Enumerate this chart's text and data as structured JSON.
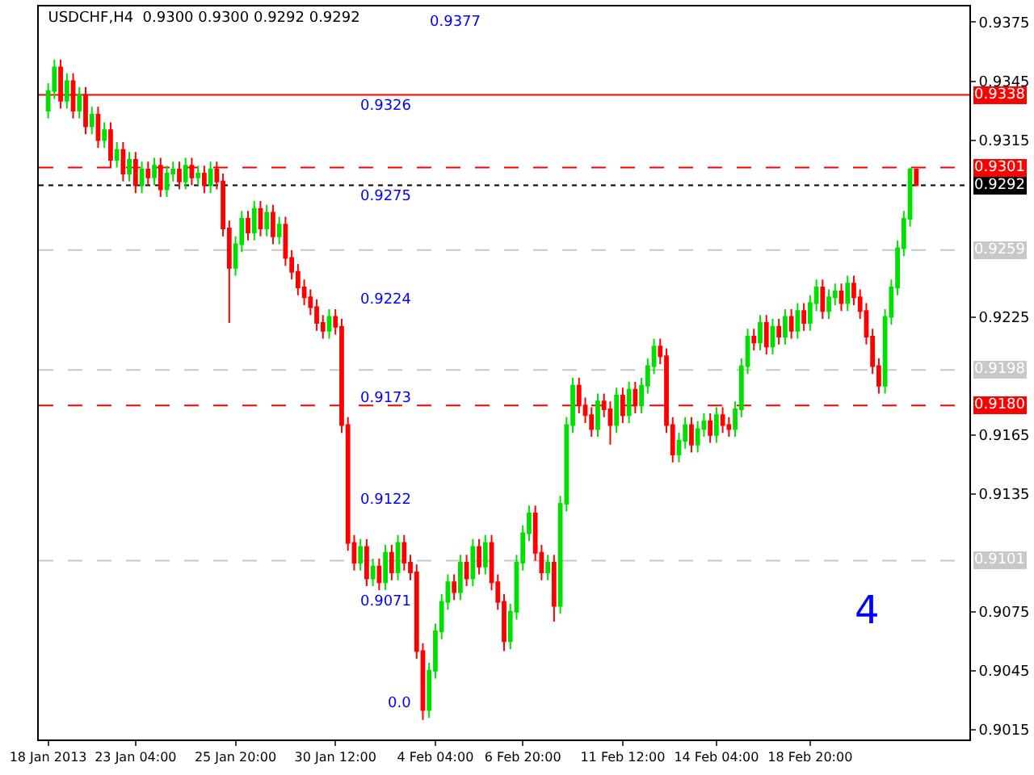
{
  "chart_data": {
    "type": "candlestick",
    "title": "USDCHF,H4  0.9300 0.9300 0.9292 0.9292",
    "categories": [
      "18 Jan 2013",
      null,
      null,
      null,
      null,
      null,
      null,
      null,
      null,
      null,
      null,
      null,
      null,
      null,
      "23 Jan 04:00",
      null,
      null,
      null,
      null,
      null,
      null,
      null,
      null,
      null,
      null,
      null,
      null,
      null,
      null,
      null,
      "25 Jan 20:00",
      null,
      null,
      null,
      null,
      null,
      null,
      null,
      null,
      null,
      null,
      null,
      null,
      null,
      null,
      null,
      "30 Jan 12:00",
      null,
      null,
      null,
      null,
      null,
      null,
      null,
      null,
      null,
      null,
      null,
      null,
      null,
      null,
      null,
      "4 Feb 04:00",
      null,
      null,
      null,
      null,
      null,
      null,
      null,
      null,
      null,
      null,
      null,
      null,
      null,
      "6 Feb 20:00",
      null,
      null,
      null,
      null,
      null,
      null,
      null,
      null,
      null,
      null,
      null,
      null,
      null,
      null,
      null,
      "11 Feb 12:00",
      null,
      null,
      null,
      null,
      null,
      null,
      null,
      null,
      null,
      null,
      null,
      null,
      null,
      null,
      "14 Feb 04:00",
      null,
      null,
      null,
      null,
      null,
      null,
      null,
      null,
      null,
      null,
      null,
      null,
      null,
      null,
      "18 Feb 20:00",
      null,
      null,
      null,
      null,
      null,
      null,
      null,
      null,
      null,
      null,
      null,
      null,
      null,
      null,
      null,
      null,
      null
    ],
    "ohlc": [
      [
        0.933,
        0.9344,
        0.9326,
        0.934
      ],
      [
        0.934,
        0.9356,
        0.9336,
        0.9352
      ],
      [
        0.9352,
        0.9356,
        0.9331,
        0.9335
      ],
      [
        0.9335,
        0.9349,
        0.9331,
        0.9345
      ],
      [
        0.9345,
        0.9349,
        0.9326,
        0.933
      ],
      [
        0.933,
        0.9342,
        0.9326,
        0.9338
      ],
      [
        0.9338,
        0.9342,
        0.9318,
        0.9322
      ],
      [
        0.9322,
        0.9332,
        0.9318,
        0.9328
      ],
      [
        0.9328,
        0.9332,
        0.9311,
        0.9315
      ],
      [
        0.9315,
        0.9324,
        0.9311,
        0.932
      ],
      [
        0.932,
        0.9324,
        0.9301,
        0.9305
      ],
      [
        0.9305,
        0.9314,
        0.9301,
        0.931
      ],
      [
        0.931,
        0.9314,
        0.9294,
        0.9298
      ],
      [
        0.9298,
        0.9309,
        0.9294,
        0.9305
      ],
      [
        0.9305,
        0.9309,
        0.9288,
        0.9292
      ],
      [
        0.9292,
        0.9304,
        0.9288,
        0.93
      ],
      [
        0.93,
        0.9304,
        0.9292,
        0.9296
      ],
      [
        0.9296,
        0.9306,
        0.9292,
        0.9302
      ],
      [
        0.9302,
        0.9306,
        0.9286,
        0.929
      ],
      [
        0.929,
        0.9302,
        0.9286,
        0.9298
      ],
      [
        0.9298,
        0.9304,
        0.9294,
        0.93
      ],
      [
        0.93,
        0.9304,
        0.929,
        0.9294
      ],
      [
        0.9294,
        0.9306,
        0.929,
        0.9302
      ],
      [
        0.9302,
        0.9306,
        0.9292,
        0.9296
      ],
      [
        0.9296,
        0.9302,
        0.9292,
        0.9298
      ],
      [
        0.9298,
        0.9302,
        0.9288,
        0.9292
      ],
      [
        0.9292,
        0.9304,
        0.9288,
        0.93
      ],
      [
        0.93,
        0.9304,
        0.929,
        0.9294
      ],
      [
        0.9294,
        0.9298,
        0.9266,
        0.927
      ],
      [
        0.927,
        0.9274,
        0.9222,
        0.925
      ],
      [
        0.925,
        0.9266,
        0.9246,
        0.9262
      ],
      [
        0.9262,
        0.9279,
        0.9258,
        0.9275
      ],
      [
        0.9275,
        0.9279,
        0.9264,
        0.9268
      ],
      [
        0.9268,
        0.9284,
        0.9264,
        0.928
      ],
      [
        0.928,
        0.9284,
        0.9266,
        0.927
      ],
      [
        0.927,
        0.9282,
        0.9266,
        0.9278
      ],
      [
        0.9278,
        0.9282,
        0.9262,
        0.9266
      ],
      [
        0.9266,
        0.9276,
        0.9262,
        0.9272
      ],
      [
        0.9272,
        0.9276,
        0.9251,
        0.9255
      ],
      [
        0.9255,
        0.9259,
        0.9244,
        0.9248
      ],
      [
        0.9248,
        0.9252,
        0.9236,
        0.924
      ],
      [
        0.924,
        0.9244,
        0.9231,
        0.9235
      ],
      [
        0.9235,
        0.9239,
        0.9226,
        0.923
      ],
      [
        0.923,
        0.9234,
        0.9218,
        0.9222
      ],
      [
        0.9222,
        0.9226,
        0.9214,
        0.9218
      ],
      [
        0.9218,
        0.9229,
        0.9214,
        0.9225
      ],
      [
        0.9225,
        0.9229,
        0.9216,
        0.922
      ],
      [
        0.922,
        0.9224,
        0.9166,
        0.917
      ],
      [
        0.917,
        0.9174,
        0.9106,
        0.911
      ],
      [
        0.911,
        0.9114,
        0.9096,
        0.91
      ],
      [
        0.91,
        0.9112,
        0.9096,
        0.9108
      ],
      [
        0.9108,
        0.9112,
        0.9088,
        0.9092
      ],
      [
        0.9092,
        0.9102,
        0.9088,
        0.9098
      ],
      [
        0.9098,
        0.9102,
        0.9086,
        0.909
      ],
      [
        0.909,
        0.9109,
        0.9086,
        0.9105
      ],
      [
        0.9105,
        0.9109,
        0.9091,
        0.9095
      ],
      [
        0.9095,
        0.9114,
        0.9091,
        0.911
      ],
      [
        0.911,
        0.9114,
        0.9096,
        0.91
      ],
      [
        0.91,
        0.9104,
        0.9091,
        0.9095
      ],
      [
        0.9095,
        0.9099,
        0.9051,
        0.9055
      ],
      [
        0.9055,
        0.9059,
        0.902,
        0.9025
      ],
      [
        0.9025,
        0.9049,
        0.9021,
        0.9045
      ],
      [
        0.9045,
        0.9069,
        0.9041,
        0.9065
      ],
      [
        0.9065,
        0.9084,
        0.9061,
        0.908
      ],
      [
        0.908,
        0.9094,
        0.9076,
        0.909
      ],
      [
        0.909,
        0.9094,
        0.9081,
        0.9085
      ],
      [
        0.9085,
        0.9104,
        0.9081,
        0.91
      ],
      [
        0.91,
        0.9104,
        0.9088,
        0.9092
      ],
      [
        0.9092,
        0.9112,
        0.9088,
        0.9108
      ],
      [
        0.9108,
        0.9112,
        0.9094,
        0.9098
      ],
      [
        0.9098,
        0.9114,
        0.9094,
        0.911
      ],
      [
        0.911,
        0.9114,
        0.9086,
        0.909
      ],
      [
        0.909,
        0.9094,
        0.9076,
        0.908
      ],
      [
        0.908,
        0.9084,
        0.9055,
        0.906
      ],
      [
        0.906,
        0.9079,
        0.9056,
        0.9075
      ],
      [
        0.9075,
        0.9104,
        0.9071,
        0.91
      ],
      [
        0.91,
        0.9119,
        0.9096,
        0.9115
      ],
      [
        0.9115,
        0.9129,
        0.9111,
        0.9125
      ],
      [
        0.9125,
        0.9129,
        0.9101,
        0.9105
      ],
      [
        0.9105,
        0.9109,
        0.9091,
        0.9095
      ],
      [
        0.9095,
        0.9104,
        0.9091,
        0.91
      ],
      [
        0.91,
        0.9104,
        0.907,
        0.9078
      ],
      [
        0.9078,
        0.9134,
        0.9074,
        0.913
      ],
      [
        0.913,
        0.9174,
        0.9126,
        0.917
      ],
      [
        0.917,
        0.9194,
        0.9166,
        0.919
      ],
      [
        0.919,
        0.9194,
        0.9176,
        0.918
      ],
      [
        0.918,
        0.9184,
        0.9171,
        0.9175
      ],
      [
        0.9175,
        0.9179,
        0.9164,
        0.9168
      ],
      [
        0.9168,
        0.9186,
        0.9164,
        0.9182
      ],
      [
        0.9182,
        0.9186,
        0.9174,
        0.9178
      ],
      [
        0.9178,
        0.9182,
        0.916,
        0.917
      ],
      [
        0.917,
        0.9189,
        0.9166,
        0.9185
      ],
      [
        0.9185,
        0.9189,
        0.9171,
        0.9175
      ],
      [
        0.9175,
        0.9192,
        0.9171,
        0.9188
      ],
      [
        0.9188,
        0.9192,
        0.9176,
        0.918
      ],
      [
        0.918,
        0.9194,
        0.9176,
        0.919
      ],
      [
        0.919,
        0.9204,
        0.9186,
        0.92
      ],
      [
        0.92,
        0.9214,
        0.9196,
        0.921
      ],
      [
        0.921,
        0.9214,
        0.9201,
        0.9205
      ],
      [
        0.9205,
        0.9209,
        0.9166,
        0.917
      ],
      [
        0.917,
        0.9174,
        0.9151,
        0.9155
      ],
      [
        0.9155,
        0.9166,
        0.9151,
        0.9162
      ],
      [
        0.9162,
        0.9174,
        0.9158,
        0.917
      ],
      [
        0.917,
        0.9174,
        0.9156,
        0.916
      ],
      [
        0.916,
        0.9172,
        0.9156,
        0.9168
      ],
      [
        0.9168,
        0.9176,
        0.9164,
        0.9172
      ],
      [
        0.9172,
        0.9176,
        0.9161,
        0.9165
      ],
      [
        0.9165,
        0.9179,
        0.9161,
        0.9175
      ],
      [
        0.9175,
        0.9179,
        0.9166,
        0.917
      ],
      [
        0.917,
        0.9174,
        0.9164,
        0.9168
      ],
      [
        0.9168,
        0.9182,
        0.9164,
        0.9178
      ],
      [
        0.9178,
        0.9204,
        0.9174,
        0.92
      ],
      [
        0.92,
        0.9219,
        0.9196,
        0.9215
      ],
      [
        0.9215,
        0.9219,
        0.9208,
        0.9212
      ],
      [
        0.9212,
        0.9226,
        0.9208,
        0.9222
      ],
      [
        0.9222,
        0.9226,
        0.9206,
        0.921
      ],
      [
        0.921,
        0.9224,
        0.9206,
        0.922
      ],
      [
        0.922,
        0.9224,
        0.9211,
        0.9215
      ],
      [
        0.9215,
        0.9229,
        0.9211,
        0.9225
      ],
      [
        0.9225,
        0.9229,
        0.9214,
        0.9218
      ],
      [
        0.9218,
        0.9232,
        0.9214,
        0.9228
      ],
      [
        0.9228,
        0.9232,
        0.9218,
        0.9222
      ],
      [
        0.9222,
        0.9236,
        0.9218,
        0.9232
      ],
      [
        0.9232,
        0.9244,
        0.9228,
        0.924
      ],
      [
        0.924,
        0.9244,
        0.9224,
        0.9228
      ],
      [
        0.9228,
        0.9239,
        0.9224,
        0.9235
      ],
      [
        0.9235,
        0.9242,
        0.9231,
        0.9238
      ],
      [
        0.9238,
        0.9242,
        0.9228,
        0.9232
      ],
      [
        0.9232,
        0.9246,
        0.9228,
        0.9242
      ],
      [
        0.9242,
        0.9246,
        0.9231,
        0.9235
      ],
      [
        0.9235,
        0.9239,
        0.9224,
        0.9228
      ],
      [
        0.9228,
        0.9232,
        0.9211,
        0.9215
      ],
      [
        0.9215,
        0.9219,
        0.9196,
        0.92
      ],
      [
        0.92,
        0.9204,
        0.9186,
        0.919
      ],
      [
        0.919,
        0.9229,
        0.9186,
        0.9225
      ],
      [
        0.9225,
        0.9244,
        0.9221,
        0.924
      ],
      [
        0.924,
        0.9264,
        0.9236,
        0.926
      ],
      [
        0.926,
        0.9279,
        0.9256,
        0.9275
      ],
      [
        0.9275,
        0.9301,
        0.9271,
        0.93
      ],
      [
        0.93,
        0.93,
        0.9292,
        0.9292
      ]
    ],
    "colors": [
      "#00e000",
      "#00e000",
      "#ff0000",
      "#00e000",
      "#ff0000",
      "#00e000",
      "#ff0000",
      "#00e000",
      "#ff0000",
      "#00e000",
      "#ff0000",
      "#00e000",
      "#ff0000",
      "#00e000",
      "#ff0000",
      "#00e000",
      "#ff0000",
      "#00e000",
      "#ff0000",
      "#00e000",
      "#00e000",
      "#ff0000",
      "#00e000",
      "#ff0000",
      "#00e000",
      "#ff0000",
      "#00e000",
      "#ff0000",
      "#ff0000",
      "#ff0000",
      "#00e000",
      "#00e000",
      "#ff0000",
      "#00e000",
      "#ff0000",
      "#00e000",
      "#ff0000",
      "#00e000",
      "#ff0000",
      "#ff0000",
      "#ff0000",
      "#ff0000",
      "#ff0000",
      "#ff0000",
      "#ff0000",
      "#00e000",
      "#ff0000",
      "#ff0000",
      "#ff0000",
      "#ff0000",
      "#00e000",
      "#ff0000",
      "#00e000",
      "#ff0000",
      "#00e000",
      "#ff0000",
      "#00e000",
      "#ff0000",
      "#ff0000",
      "#ff0000",
      "#ff0000",
      "#00e000",
      "#00e000",
      "#00e000",
      "#00e000",
      "#ff0000",
      "#00e000",
      "#ff0000",
      "#00e000",
      "#ff0000",
      "#00e000",
      "#ff0000",
      "#ff0000",
      "#ff0000",
      "#00e000",
      "#00e000",
      "#00e000",
      "#00e000",
      "#ff0000",
      "#ff0000",
      "#00e000",
      "#ff0000",
      "#00e000",
      "#00e000",
      "#00e000",
      "#ff0000",
      "#ff0000",
      "#ff0000",
      "#00e000",
      "#ff0000",
      "#ff0000",
      "#00e000",
      "#ff0000",
      "#00e000",
      "#ff0000",
      "#00e000",
      "#00e000",
      "#00e000",
      "#ff0000",
      "#ff0000",
      "#ff0000",
      "#00e000",
      "#00e000",
      "#ff0000",
      "#00e000",
      "#00e000",
      "#ff0000",
      "#00e000",
      "#ff0000",
      "#ff0000",
      "#00e000",
      "#00e000",
      "#00e000",
      "#ff0000",
      "#00e000",
      "#ff0000",
      "#00e000",
      "#ff0000",
      "#00e000",
      "#ff0000",
      "#00e000",
      "#ff0000",
      "#00e000",
      "#00e000",
      "#ff0000",
      "#00e000",
      "#00e000",
      "#ff0000",
      "#00e000",
      "#ff0000",
      "#ff0000",
      "#ff0000",
      "#ff0000",
      "#ff0000",
      "#00e000",
      "#00e000",
      "#00e000",
      "#00e000",
      "#00e000",
      "#ff0000"
    ],
    "ylim": [
      0.901,
      0.9383
    ],
    "yticks": [
      0.9015,
      0.9045,
      0.9075,
      0.9135,
      0.9165,
      0.9225,
      0.9315,
      0.9345,
      0.9375
    ],
    "ref_lines": [
      {
        "axis": "y",
        "value": 0.9338,
        "label": "0.9338",
        "color": "#ff0000",
        "line_style": "solid"
      },
      {
        "axis": "y",
        "value": 0.9301,
        "label": "0.9301",
        "color": "#ff0000",
        "line_style": "dashed"
      },
      {
        "axis": "y",
        "value": 0.9292,
        "label": "0.9292",
        "color": "#000000",
        "line_style": "dotted"
      },
      {
        "axis": "y",
        "value": 0.9259,
        "label": "0.9259",
        "color": "#c8c8c8",
        "line_style": "dashed"
      },
      {
        "axis": "y",
        "value": 0.9198,
        "label": "0.9198",
        "color": "#c8c8c8",
        "line_style": "dashed"
      },
      {
        "axis": "y",
        "value": 0.918,
        "label": "0.9180",
        "color": "#ff0000",
        "line_style": "dashed"
      },
      {
        "axis": "y",
        "value": 0.9101,
        "label": "0.9101",
        "color": "#c8c8c8",
        "line_style": "dashed"
      }
    ],
    "annotations": [
      "0.9377",
      "0.9326",
      "0.9275",
      "0.9224",
      "0.9173",
      "0.9122",
      "0.9071",
      "0.0",
      "4"
    ]
  }
}
